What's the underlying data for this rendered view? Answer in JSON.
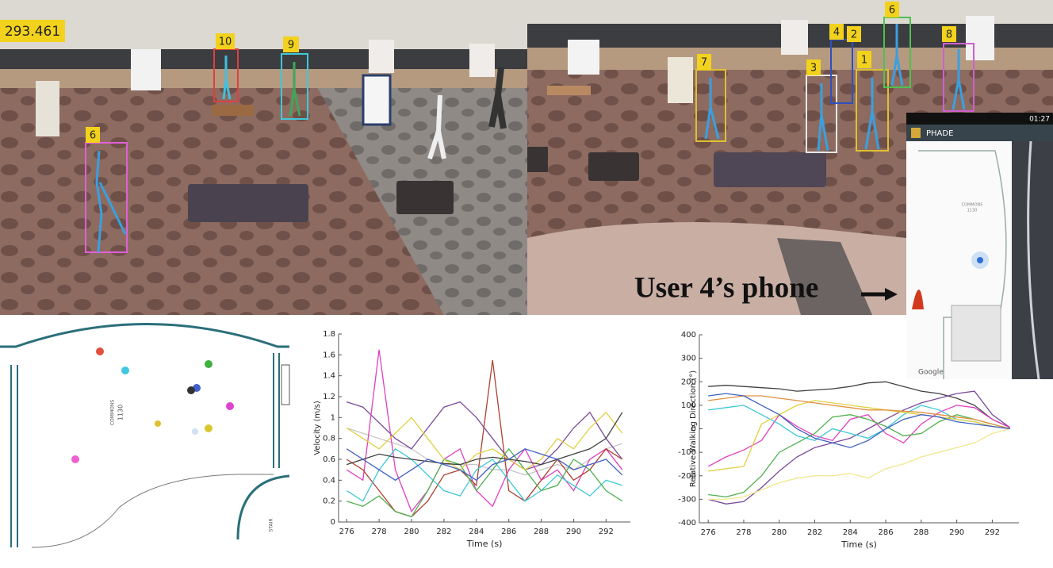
{
  "video": {
    "timestamp": 293.461,
    "left_track_ids": [
      10,
      9,
      6
    ],
    "right_track_ids": [
      6,
      4,
      2,
      8,
      7,
      3,
      1
    ]
  },
  "phone": {
    "clock": "01:27",
    "app_title": "PHADE",
    "room_name": "COMMONS",
    "room_number": "1130",
    "map_credit": "Google"
  },
  "caption": "User 4’s phone",
  "floor_plan": {
    "room_name": "COMMONS",
    "room_number": "1130",
    "stair_label": "STAIR"
  },
  "chart_data": [
    {
      "type": "line",
      "xlabel": "Time (s)",
      "ylabel": "Velocity (m/s)",
      "x": [
        276,
        277,
        278,
        279,
        280,
        281,
        282,
        283,
        284,
        285,
        286,
        287,
        288,
        289,
        290,
        291,
        292,
        293
      ],
      "xlim": [
        275.5,
        293.5
      ],
      "xticks": [
        276,
        278,
        280,
        282,
        284,
        286,
        288,
        290,
        292
      ],
      "ylim": [
        0,
        1.8
      ],
      "yticks": [
        0,
        0.2,
        0.4,
        0.6,
        0.8,
        1,
        1.2,
        1.4,
        1.6,
        1.8
      ],
      "grid": false,
      "series": [
        {
          "color": "#c8c8c8",
          "values": [
            0.9,
            0.85,
            0.8,
            0.75,
            0.7,
            0.6,
            0.55,
            0.55,
            0.55,
            0.5,
            0.5,
            0.45,
            0.5,
            0.55,
            0.5,
            0.6,
            0.7,
            0.75
          ]
        },
        {
          "color": "#7b4a9a",
          "values": [
            1.15,
            1.1,
            0.95,
            0.8,
            0.7,
            0.9,
            1.1,
            1.15,
            1.0,
            0.8,
            0.6,
            0.5,
            0.55,
            0.7,
            0.9,
            1.05,
            0.8,
            0.6
          ]
        },
        {
          "color": "#e040c0",
          "values": [
            0.5,
            0.4,
            1.65,
            0.5,
            0.1,
            0.3,
            0.6,
            0.7,
            0.3,
            0.15,
            0.5,
            0.7,
            0.4,
            0.5,
            0.3,
            0.6,
            0.7,
            0.5
          ]
        },
        {
          "color": "#b04030",
          "values": [
            0.6,
            0.5,
            0.3,
            0.1,
            0.05,
            0.2,
            0.45,
            0.5,
            0.35,
            1.55,
            0.3,
            0.2,
            0.4,
            0.6,
            0.4,
            0.5,
            0.7,
            0.6
          ]
        },
        {
          "color": "#40c8d8",
          "values": [
            0.3,
            0.2,
            0.5,
            0.7,
            0.6,
            0.45,
            0.3,
            0.25,
            0.5,
            0.6,
            0.4,
            0.2,
            0.3,
            0.45,
            0.35,
            0.25,
            0.4,
            0.35
          ]
        },
        {
          "color": "#50b050",
          "values": [
            0.2,
            0.15,
            0.25,
            0.1,
            0.05,
            0.3,
            0.6,
            0.55,
            0.3,
            0.5,
            0.7,
            0.5,
            0.3,
            0.35,
            0.6,
            0.5,
            0.3,
            0.2
          ]
        },
        {
          "color": "#e0d040",
          "values": [
            0.9,
            0.8,
            0.7,
            0.85,
            1.0,
            0.8,
            0.6,
            0.5,
            0.65,
            0.7,
            0.6,
            0.5,
            0.6,
            0.8,
            0.7,
            0.9,
            1.05,
            0.85
          ]
        },
        {
          "color": "#404040",
          "values": [
            0.55,
            0.6,
            0.65,
            0.62,
            0.6,
            0.58,
            0.56,
            0.55,
            0.6,
            0.62,
            0.6,
            0.58,
            0.55,
            0.6,
            0.65,
            0.7,
            0.8,
            1.05
          ]
        },
        {
          "color": "#4060c0",
          "values": [
            0.7,
            0.6,
            0.5,
            0.4,
            0.5,
            0.6,
            0.55,
            0.5,
            0.4,
            0.55,
            0.6,
            0.7,
            0.65,
            0.6,
            0.5,
            0.55,
            0.6,
            0.45
          ]
        }
      ]
    },
    {
      "type": "line",
      "xlabel": "Time (s)",
      "ylabel": "Relative Walking Direction (°)",
      "x": [
        276,
        277,
        278,
        279,
        280,
        281,
        282,
        283,
        284,
        285,
        286,
        287,
        288,
        289,
        290,
        291,
        292,
        293
      ],
      "xlim": [
        275.5,
        293.5
      ],
      "xticks": [
        276,
        278,
        280,
        282,
        284,
        286,
        288,
        290,
        292
      ],
      "ylim": [
        -400,
        400
      ],
      "yticks": [
        -400,
        -300,
        -200,
        -100,
        0,
        100,
        200,
        300,
        400
      ],
      "grid": false,
      "series": [
        {
          "color": "#404040",
          "values": [
            180,
            185,
            180,
            175,
            170,
            160,
            165,
            170,
            180,
            195,
            200,
            180,
            160,
            150,
            130,
            100,
            40,
            5
          ]
        },
        {
          "color": "#7b4a9a",
          "values": [
            -300,
            -320,
            -310,
            -250,
            -180,
            -120,
            -80,
            -60,
            -40,
            0,
            40,
            80,
            110,
            130,
            150,
            160,
            60,
            5
          ]
        },
        {
          "color": "#e040c0",
          "values": [
            -160,
            -120,
            -90,
            -50,
            60,
            10,
            -30,
            -50,
            40,
            60,
            -20,
            -60,
            20,
            70,
            100,
            90,
            40,
            5
          ]
        },
        {
          "color": "#50b050",
          "values": [
            -280,
            -290,
            -270,
            -200,
            -100,
            -60,
            -20,
            50,
            60,
            40,
            10,
            -30,
            -20,
            30,
            60,
            40,
            20,
            0
          ]
        },
        {
          "color": "#40c8d8",
          "values": [
            80,
            90,
            100,
            60,
            20,
            -30,
            -50,
            0,
            -20,
            -40,
            0,
            60,
            100,
            80,
            40,
            30,
            10,
            0
          ]
        },
        {
          "color": "#e0d040",
          "values": [
            -180,
            -170,
            -160,
            20,
            60,
            100,
            120,
            110,
            100,
            90,
            80,
            70,
            60,
            50,
            40,
            30,
            10,
            0
          ]
        },
        {
          "color": "#f0e890",
          "values": [
            -300,
            -300,
            -290,
            -260,
            -230,
            -210,
            -200,
            -200,
            -190,
            -210,
            -170,
            -150,
            -120,
            -100,
            -80,
            -60,
            -20,
            0
          ]
        },
        {
          "color": "#e09040",
          "values": [
            120,
            130,
            140,
            140,
            130,
            120,
            110,
            100,
            90,
            80,
            80,
            75,
            70,
            60,
            50,
            40,
            20,
            0
          ]
        },
        {
          "color": "#4060c0",
          "values": [
            140,
            150,
            140,
            100,
            60,
            0,
            -40,
            -60,
            -80,
            -50,
            0,
            40,
            60,
            50,
            30,
            20,
            10,
            0
          ]
        }
      ]
    }
  ]
}
